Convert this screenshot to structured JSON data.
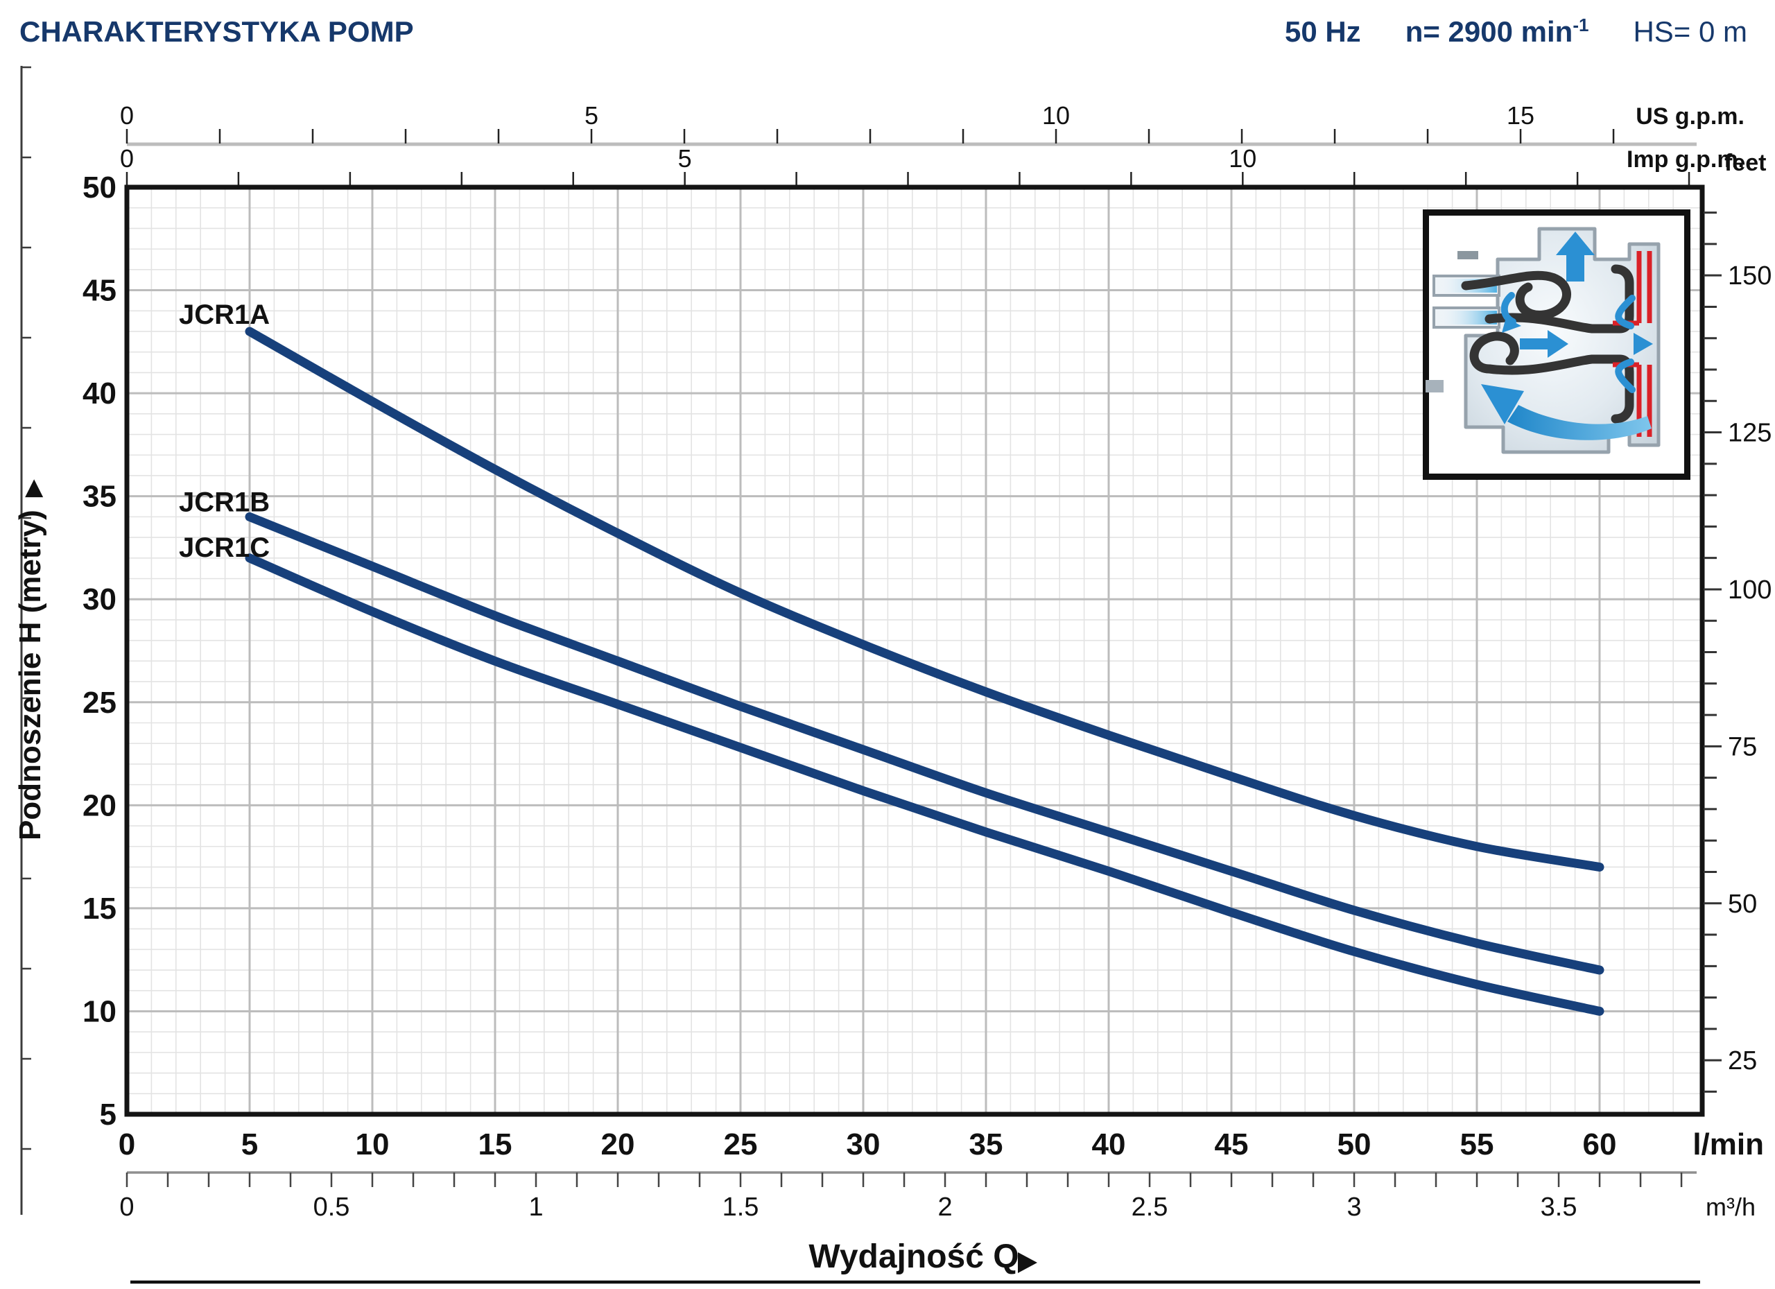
{
  "header": {
    "title": "CHARAKTERYSTYKA POMP",
    "frequency": "50 Hz",
    "speed_prefix": "n= 2900 min",
    "speed_exponent": "-1",
    "suction_head": "HS= 0 m"
  },
  "chart_data": {
    "type": "line",
    "title": "CHARAKTERYSTYKA POMP",
    "xlabel": "Wydajność Q",
    "xlabel_arrow": "▶",
    "ylabel_left": "Podnoszenie H  (metry)",
    "ylabel_arrow": "▶",
    "grid_on": true,
    "x_axis_lmin": {
      "unit": "l/min",
      "labels": [
        0,
        5,
        10,
        15,
        20,
        25,
        30,
        35,
        40,
        45,
        50,
        55,
        60
      ],
      "minor_step": 1,
      "range": [
        0,
        64.2
      ]
    },
    "x_axis_m3h": {
      "unit": "m³/h",
      "labels": [
        0,
        0.5,
        1,
        1.5,
        2,
        2.5,
        3,
        3.5
      ],
      "minor_step": 0.1,
      "max_tick": 3.8,
      "lmin_per_unit": 16.667
    },
    "x_axis_usgpm": {
      "unit": "US g.p.m.",
      "labels": [
        0,
        5,
        10,
        15
      ],
      "minor_step": 1,
      "max_tick": 16,
      "lmin_per_unit": 3.7854
    },
    "x_axis_impgpm": {
      "unit": "Imp g.p.m.",
      "labels": [
        0,
        5,
        10
      ],
      "minor_step": 1,
      "max_tick": 14,
      "lmin_per_unit": 4.5461
    },
    "y_axis_m": {
      "labels": [
        5,
        10,
        15,
        20,
        25,
        30,
        35,
        40,
        45,
        50
      ],
      "range": [
        5,
        50
      ],
      "minor_step": 1,
      "major_step": 5
    },
    "y_axis_feet": {
      "unit": "feet",
      "labels": [
        25,
        50,
        75,
        100,
        125,
        150
      ],
      "tick_step": 5,
      "tick_range": [
        20,
        160
      ],
      "m_per_foot": 0.3048
    },
    "x_lmin": [
      5,
      10,
      15,
      20,
      25,
      30,
      35,
      40,
      45,
      50,
      55,
      60
    ],
    "series": [
      {
        "name": "JCR1A",
        "h_m": [
          43,
          39.6,
          36.3,
          33.2,
          30.3,
          27.8,
          25.5,
          23.4,
          21.4,
          19.5,
          18.0,
          17.0
        ]
      },
      {
        "name": "JCR1B",
        "h_m": [
          34,
          31.6,
          29.2,
          27.0,
          24.8,
          22.7,
          20.6,
          18.7,
          16.8,
          14.9,
          13.3,
          12.0
        ]
      },
      {
        "name": "JCR1C",
        "h_m": [
          32,
          29.4,
          27.0,
          24.9,
          22.8,
          20.7,
          18.7,
          16.8,
          14.8,
          12.9,
          11.3,
          10.0
        ]
      }
    ]
  },
  "inset_diagram": {
    "name": "jet-pump cross-section"
  },
  "colors": {
    "accent_navy": "#16386b",
    "curve": "#17407b",
    "grid_minor": "#e3e3e3",
    "grid_major": "#bcbcbc",
    "frame": "#141414",
    "tick": "#222222",
    "ruler_gray": "#bdbdbd",
    "red": "#da2128",
    "flow_blue": "#2b90d3",
    "housing": "#ccd7e0",
    "housing_outline": "#96a2ac"
  }
}
